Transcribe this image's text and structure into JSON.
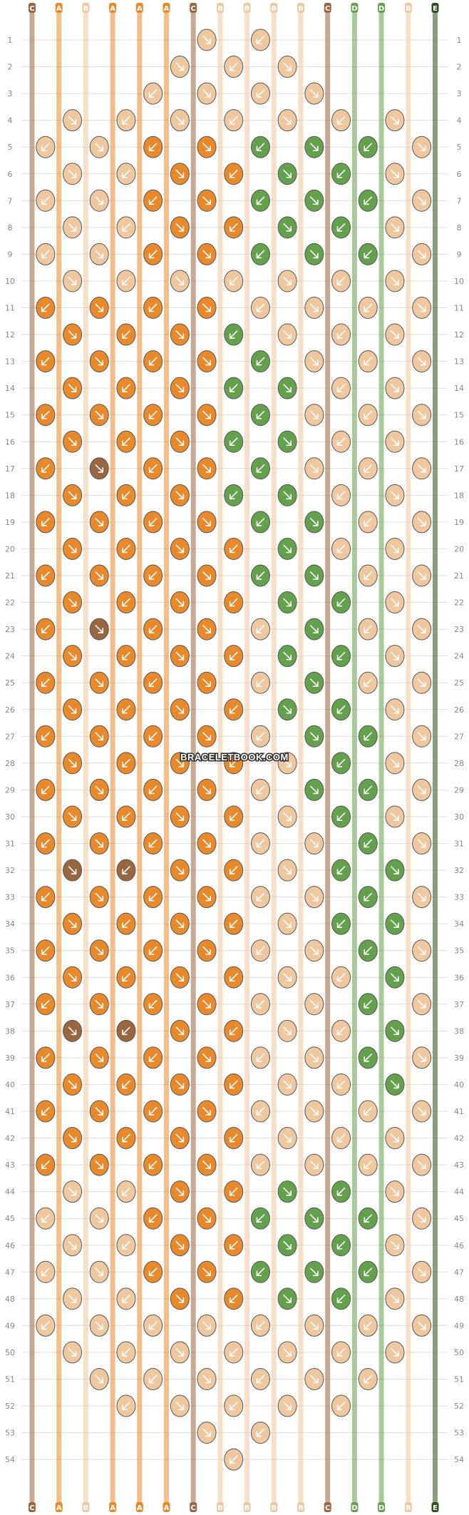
{
  "pattern": {
    "strand_letters": [
      "C",
      "A",
      "B",
      "A",
      "A",
      "A",
      "C",
      "B",
      "B",
      "B",
      "B",
      "C",
      "D",
      "D",
      "B",
      "E"
    ],
    "colors": {
      "A": "#e8892b",
      "B": "#f0c8a0",
      "C": "#9a6640",
      "D": "#63a14d",
      "E": "#2a5218"
    },
    "rows": 54,
    "row_numbers": [
      1,
      2,
      3,
      4,
      5,
      6,
      7,
      8,
      9,
      10,
      11,
      12,
      13,
      14,
      15,
      16,
      17,
      18,
      19,
      20,
      21,
      22,
      23,
      24,
      25,
      26,
      27,
      28,
      29,
      30,
      31,
      32,
      33,
      34,
      35,
      36,
      37,
      38,
      39,
      40,
      41,
      42,
      43,
      44,
      45,
      46,
      47,
      48,
      49,
      50,
      51,
      52,
      53,
      54
    ],
    "watermark": "BRACELETBOOK.COM"
  }
}
